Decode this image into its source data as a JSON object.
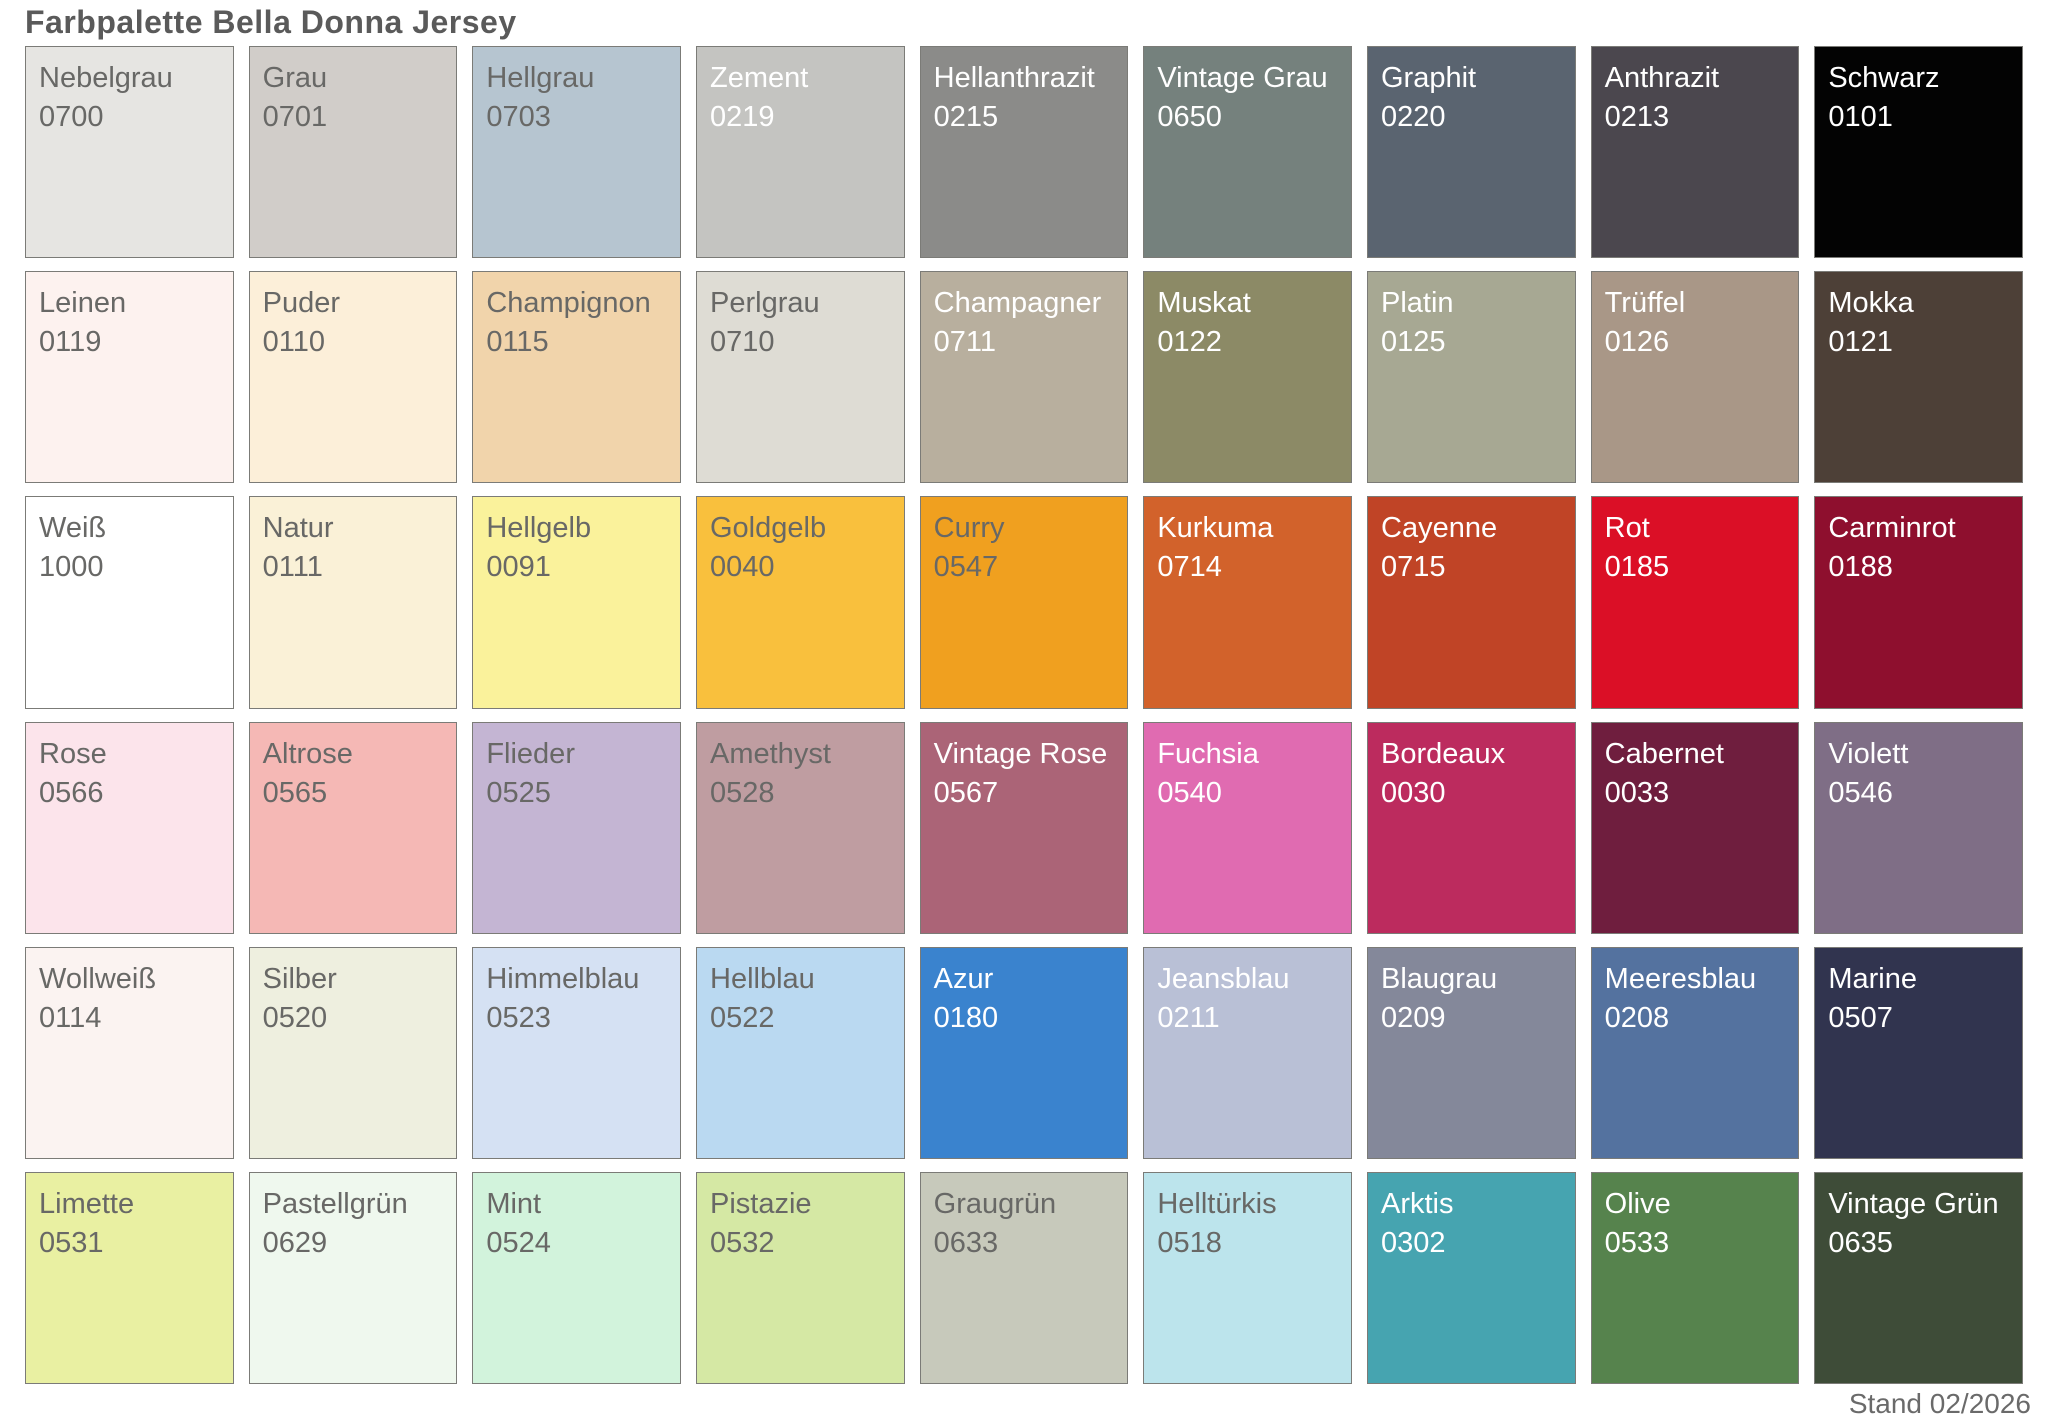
{
  "title": "Farbpalette Bella Donna Jersey",
  "footer": "Stand 02/2026",
  "style": {
    "title_color": "#5a5a5a",
    "border_color": "#7b7b77",
    "text_dark_color": "#686866",
    "text_light_color": "#ffffff",
    "background": "#ffffff"
  },
  "palette": {
    "rows": 6,
    "cols": 9,
    "swatches": [
      {
        "name": "Nebelgrau",
        "code": "0700",
        "color": "#e6e5e2",
        "text": "dark"
      },
      {
        "name": "Grau",
        "code": "0701",
        "color": "#d1cdc9",
        "text": "dark"
      },
      {
        "name": "Hellgrau",
        "code": "0703",
        "color": "#b6c5d0",
        "text": "dark"
      },
      {
        "name": "Zement",
        "code": "0219",
        "color": "#c4c4c1",
        "text": "light"
      },
      {
        "name": "Hellanthrazit",
        "code": "0215",
        "color": "#8b8b89",
        "text": "light"
      },
      {
        "name": "Vintage Grau",
        "code": "0650",
        "color": "#75817d",
        "text": "light"
      },
      {
        "name": "Graphit",
        "code": "0220",
        "color": "#5a6470",
        "text": "light"
      },
      {
        "name": "Anthrazit",
        "code": "0213",
        "color": "#4b474e",
        "text": "light"
      },
      {
        "name": "Schwarz",
        "code": "0101",
        "color": "#030303",
        "text": "light"
      },
      {
        "name": "Leinen",
        "code": "0119",
        "color": "#fdf2ef",
        "text": "dark"
      },
      {
        "name": "Puder",
        "code": "0110",
        "color": "#fcefd9",
        "text": "dark"
      },
      {
        "name": "Champignon",
        "code": "0115",
        "color": "#f1d4ab",
        "text": "dark"
      },
      {
        "name": "Perlgrau",
        "code": "0710",
        "color": "#dedcd4",
        "text": "dark"
      },
      {
        "name": "Champagner",
        "code": "0711",
        "color": "#b8af9e",
        "text": "light"
      },
      {
        "name": "Muskat",
        "code": "0122",
        "color": "#8c8a66",
        "text": "light"
      },
      {
        "name": "Platin",
        "code": "0125",
        "color": "#a7a893",
        "text": "light"
      },
      {
        "name": "Trüffel",
        "code": "0126",
        "color": "#a99787",
        "text": "light"
      },
      {
        "name": "Mokka",
        "code": "0121",
        "color": "#4d4037",
        "text": "light"
      },
      {
        "name": "Weiß",
        "code": "1000",
        "color": "#ffffff",
        "text": "dark"
      },
      {
        "name": "Natur",
        "code": "0111",
        "color": "#faf1d7",
        "text": "dark"
      },
      {
        "name": "Hellgelb",
        "code": "0091",
        "color": "#faf29b",
        "text": "dark"
      },
      {
        "name": "Goldgelb",
        "code": "0040",
        "color": "#f9c03d",
        "text": "dark"
      },
      {
        "name": "Curry",
        "code": "0547",
        "color": "#f0a01f",
        "text": "dark"
      },
      {
        "name": "Kurkuma",
        "code": "0714",
        "color": "#d2622b",
        "text": "light"
      },
      {
        "name": "Cayenne",
        "code": "0715",
        "color": "#c04426",
        "text": "light"
      },
      {
        "name": "Rot",
        "code": "0185",
        "color": "#db0f26",
        "text": "light"
      },
      {
        "name": "Carminrot",
        "code": "0188",
        "color": "#8e0f2e",
        "text": "light"
      },
      {
        "name": "Rose",
        "code": "0566",
        "color": "#fce4eb",
        "text": "dark"
      },
      {
        "name": "Altrose",
        "code": "0565",
        "color": "#f5b8b5",
        "text": "dark"
      },
      {
        "name": "Flieder",
        "code": "0525",
        "color": "#c4b5d3",
        "text": "dark"
      },
      {
        "name": "Amethyst",
        "code": "0528",
        "color": "#bf9da1",
        "text": "dark"
      },
      {
        "name": "Vintage Rose",
        "code": "0567",
        "color": "#ab6477",
        "text": "light"
      },
      {
        "name": "Fuchsia",
        "code": "0540",
        "color": "#e06bb1",
        "text": "light"
      },
      {
        "name": "Bordeaux",
        "code": "0030",
        "color": "#bc2b5e",
        "text": "light"
      },
      {
        "name": "Cabernet",
        "code": "0033",
        "color": "#6f1e3e",
        "text": "light"
      },
      {
        "name": "Violett",
        "code": "0546",
        "color": "#7f6e86",
        "text": "light"
      },
      {
        "name": "Wollweiß",
        "code": "0114",
        "color": "#fbf3f1",
        "text": "dark"
      },
      {
        "name": "Silber",
        "code": "0520",
        "color": "#eeefdf",
        "text": "dark"
      },
      {
        "name": "Himmelblau",
        "code": "0523",
        "color": "#d5e1f3",
        "text": "dark"
      },
      {
        "name": "Hellblau",
        "code": "0522",
        "color": "#bad9f1",
        "text": "dark"
      },
      {
        "name": "Azur",
        "code": "0180",
        "color": "#3a83ce",
        "text": "light"
      },
      {
        "name": "Jeansblau",
        "code": "0211",
        "color": "#b9c0d6",
        "text": "light"
      },
      {
        "name": "Blaugrau",
        "code": "0209",
        "color": "#84889a",
        "text": "light"
      },
      {
        "name": "Meeresblau",
        "code": "0208",
        "color": "#54729f",
        "text": "light"
      },
      {
        "name": "Marine",
        "code": "0507",
        "color": "#31344f",
        "text": "light"
      },
      {
        "name": "Limette",
        "code": "0531",
        "color": "#e9f0a2",
        "text": "dark"
      },
      {
        "name": "Pastellgrün",
        "code": "0629",
        "color": "#eff8ee",
        "text": "dark"
      },
      {
        "name": "Mint",
        "code": "0524",
        "color": "#d2f3dc",
        "text": "dark"
      },
      {
        "name": "Pistazie",
        "code": "0532",
        "color": "#d5e8a4",
        "text": "dark"
      },
      {
        "name": "Graugrün",
        "code": "0633",
        "color": "#c7c9bb",
        "text": "dark"
      },
      {
        "name": "Helltürkis",
        "code": "0518",
        "color": "#bce4ec",
        "text": "dark"
      },
      {
        "name": "Arktis",
        "code": "0302",
        "color": "#46a4b0",
        "text": "light"
      },
      {
        "name": "Olive",
        "code": "0533",
        "color": "#56834d",
        "text": "light"
      },
      {
        "name": "Vintage Grün",
        "code": "0635",
        "color": "#3e4c38",
        "text": "light"
      }
    ]
  }
}
